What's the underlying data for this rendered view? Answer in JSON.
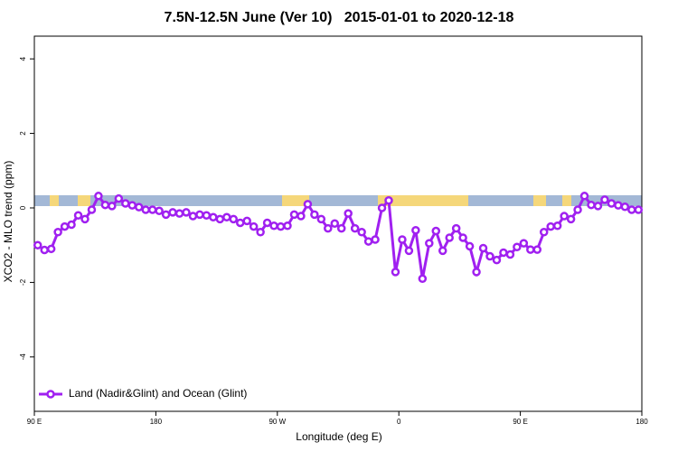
{
  "chart_data": {
    "type": "line",
    "title": "7.5N-12.5N June (Ver 10)   2015-01-01 to 2020-12-18",
    "x_label": "Longitude (deg E)",
    "y_label": "XCO2 - MLO trend (ppm)",
    "xlim": [
      90,
      540
    ],
    "ylim": [
      -5.46,
      4.61
    ],
    "xticks": [
      {
        "value": 90,
        "label": "90 E"
      },
      {
        "value": 180,
        "label": "180"
      },
      {
        "value": 270,
        "label": "90 W"
      },
      {
        "value": 360,
        "label": "0"
      },
      {
        "value": 450,
        "label": "90 E"
      },
      {
        "value": 540,
        "label": "180"
      }
    ],
    "yticks": [
      -4,
      -2,
      0,
      2,
      4
    ],
    "legend": "bottom-left",
    "x": [
      92.5,
      97.5,
      102.5,
      107.5,
      112.5,
      117.5,
      122.5,
      127.5,
      132.5,
      137.5,
      142.5,
      147.5,
      152.5,
      157.5,
      162.5,
      167.5,
      172.5,
      177.5,
      182.5,
      187.5,
      192.5,
      197.5,
      202.5,
      207.5,
      212.5,
      217.5,
      222.5,
      227.5,
      232.5,
      237.5,
      242.5,
      247.5,
      252.5,
      257.5,
      262.5,
      267.5,
      272.5,
      277.5,
      282.5,
      287.5,
      292.5,
      297.5,
      302.5,
      307.5,
      312.5,
      317.5,
      322.5,
      327.5,
      332.5,
      337.5,
      342.5,
      347.5,
      352.5,
      357.5,
      362.5,
      367.5,
      372.5,
      377.5,
      382.5,
      387.5,
      392.5,
      397.5,
      402.5,
      407.5,
      412.5,
      417.5,
      422.5,
      427.5,
      432.5,
      437.5,
      442.5,
      447.5,
      452.5,
      457.5,
      462.5,
      467.5,
      472.5,
      477.5,
      482.5,
      487.5,
      492.5,
      497.5,
      502.5,
      507.5,
      512.5,
      517.5,
      522.5,
      527.5,
      532.5,
      537.5
    ],
    "series": [
      {
        "name": "Land (Nadir&Glint) and Ocean (Glint)",
        "color": "#a020f0",
        "values": [
          -1.0,
          -1.13,
          -1.1,
          -0.65,
          -0.5,
          -0.45,
          -0.2,
          -0.3,
          -0.05,
          0.32,
          0.08,
          0.05,
          0.25,
          0.12,
          0.07,
          0.02,
          -0.05,
          -0.05,
          -0.08,
          -0.18,
          -0.12,
          -0.15,
          -0.12,
          -0.22,
          -0.18,
          -0.2,
          -0.25,
          -0.3,
          -0.25,
          -0.3,
          -0.4,
          -0.35,
          -0.5,
          -0.65,
          -0.4,
          -0.48,
          -0.5,
          -0.48,
          -0.18,
          -0.22,
          0.1,
          -0.18,
          -0.3,
          -0.55,
          -0.42,
          -0.55,
          -0.15,
          -0.55,
          -0.65,
          -0.9,
          -0.85,
          0.0,
          0.2,
          -1.72,
          -0.85,
          -1.15,
          -0.6,
          -1.9,
          -0.95,
          -0.62,
          -1.15,
          -0.8,
          -0.55,
          -0.8,
          -1.03,
          -1.72,
          -1.08,
          -1.3,
          -1.4,
          -1.2,
          -1.25,
          -1.05,
          -0.95,
          -1.12,
          -1.12,
          -0.65,
          -0.5,
          -0.48,
          -0.22,
          -0.3,
          -0.05,
          0.32,
          0.08,
          0.05,
          0.22,
          0.12,
          0.07,
          0.03,
          -0.05,
          -0.05
        ]
      }
    ]
  }
}
